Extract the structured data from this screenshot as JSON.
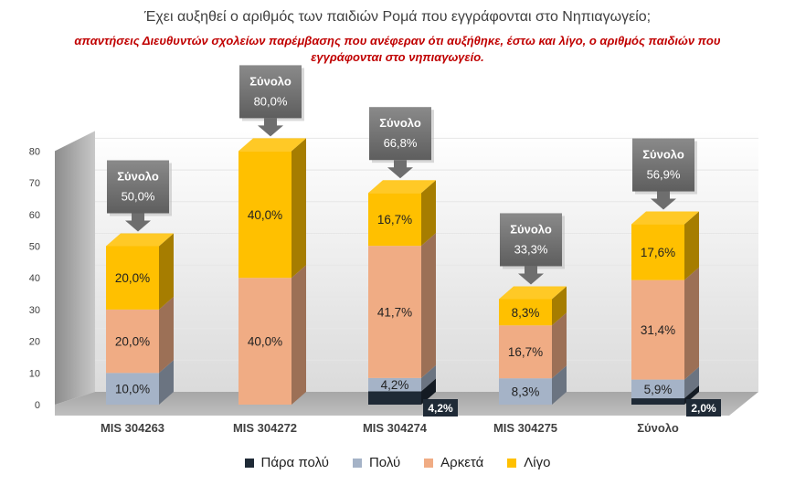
{
  "chart_data": {
    "type": "bar",
    "stacked": true,
    "title": "Έχει αυξηθεί ο αριθμός των παιδιών Ρομά που εγγράφονται στο Νηπιαγωγείο;",
    "subtitle": "απαντήσεις Διευθυντών σχολείων παρέμβασης που ανέφεραν ότι αυξήθηκε, έστω και λίγο, ο αριθμός παιδιών που εγγράφονται στο νηπιαγωγείο.",
    "categories": [
      "MIS 304263",
      "MIS 304272",
      "MIS 304274",
      "MIS 304275",
      "Σύνολο"
    ],
    "series": [
      {
        "name": "Πάρα πολύ",
        "color": "#1f2a36",
        "values": [
          0,
          0,
          4.2,
          0,
          2.0
        ],
        "labels": [
          "",
          "",
          "4,2%",
          "",
          "2,0%"
        ]
      },
      {
        "name": "Πολύ",
        "color": "#a5b3c7",
        "values": [
          10.0,
          0,
          4.2,
          8.3,
          5.9
        ],
        "labels": [
          "10,0%",
          "",
          "4,2%",
          "8,3%",
          "5,9%"
        ]
      },
      {
        "name": "Αρκετά",
        "color": "#f0ac84",
        "values": [
          20.0,
          40.0,
          41.7,
          16.7,
          31.4
        ],
        "labels": [
          "20,0%",
          "40,0%",
          "41,7%",
          "16,7%",
          "31,4%"
        ]
      },
      {
        "name": "Λίγο",
        "color": "#ffc000",
        "values": [
          20.0,
          40.0,
          16.7,
          8.3,
          17.6
        ],
        "labels": [
          "20,0%",
          "40,0%",
          "16,7%",
          "8,3%",
          "17,6%"
        ]
      }
    ],
    "totals_heading": "Σύνολο",
    "totals": [
      "50,0%",
      "80,0%",
      "66,8%",
      "33,3%",
      "56,9%"
    ],
    "ylim": [
      0,
      80
    ],
    "yticks": [
      "0",
      "10",
      "20",
      "30",
      "40",
      "50",
      "60",
      "70",
      "80"
    ],
    "legend_position": "bottom"
  }
}
